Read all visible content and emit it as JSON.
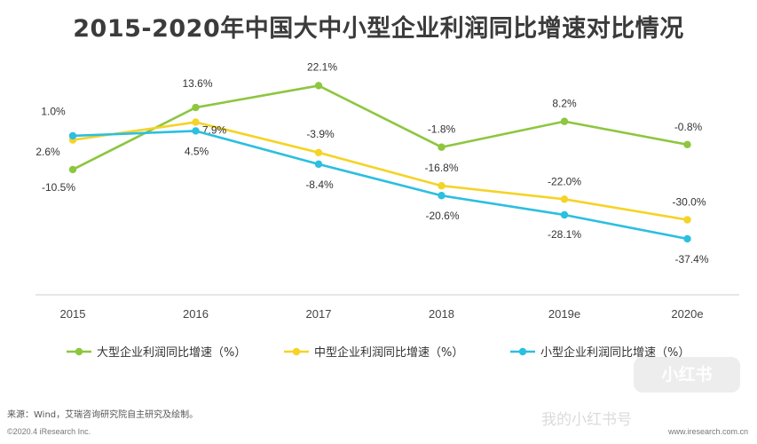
{
  "title": "2015-2020年中国大中小型企业利润同比增速对比情况",
  "chart_data": {
    "type": "line",
    "categories": [
      "2015",
      "2016",
      "2017",
      "2018",
      "2019e",
      "2020e"
    ],
    "series": [
      {
        "name": "大型企业利润同比增速（%）",
        "color": "#8dc63f",
        "values": [
          -10.5,
          13.6,
          22.1,
          -1.8,
          8.2,
          -0.8
        ],
        "labels": [
          "-10.5%",
          "13.6%",
          "22.1%",
          "-1.8%",
          "8.2%",
          "-0.8%"
        ]
      },
      {
        "name": "中型企业利润同比增速（%）",
        "color": "#f5d327",
        "values": [
          1.0,
          7.9,
          -3.9,
          -16.8,
          -22.0,
          -30.0
        ],
        "labels": [
          "1.0%",
          "7.9%",
          "-3.9%",
          "-16.8%",
          "-22.0%",
          "-30.0%"
        ]
      },
      {
        "name": "小型企业利润同比增速（%）",
        "color": "#2bbfe0",
        "values": [
          2.6,
          4.5,
          -8.4,
          -20.6,
          -28.1,
          -37.4
        ],
        "labels": [
          "2.6%",
          "4.5%",
          "-8.4%",
          "-20.6%",
          "-28.1%",
          "-37.4%"
        ]
      }
    ],
    "ylim": [
      -45,
      30
    ],
    "legend_position": "bottom"
  },
  "footer": {
    "source": "来源：Wind，艾瑞咨询研究院自主研究及绘制。",
    "copyright": "©2020.4 iResearch Inc.",
    "website": "www.iresearch.com.cn"
  },
  "watermark": {
    "badge": "小红书",
    "text": "我的小红书号"
  }
}
